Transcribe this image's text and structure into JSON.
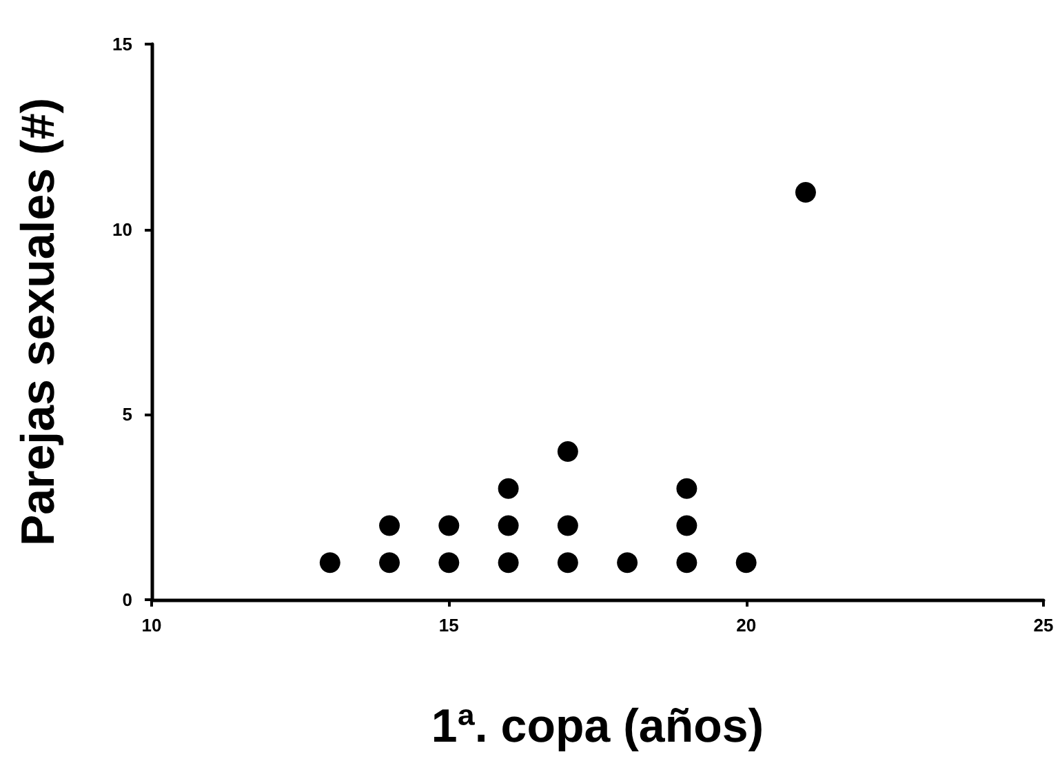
{
  "chart_data": {
    "type": "scatter",
    "xlabel": "1ª. copa (años)",
    "ylabel": "Parejas sexuales (#)",
    "x": [
      13,
      14,
      14,
      15,
      15,
      16,
      16,
      16,
      17,
      17,
      17,
      18,
      19,
      19,
      19,
      20,
      21
    ],
    "values": [
      1,
      1,
      2,
      1,
      2,
      1,
      2,
      3,
      1,
      2,
      4,
      1,
      1,
      2,
      3,
      1,
      11
    ],
    "color": "#000000",
    "marker": "circle",
    "grid": false,
    "xlim": [
      10,
      25
    ],
    "xticks": [
      10,
      15,
      20,
      25
    ],
    "ylim": [
      0,
      15
    ],
    "yticks": [
      0,
      5,
      10,
      15
    ]
  }
}
